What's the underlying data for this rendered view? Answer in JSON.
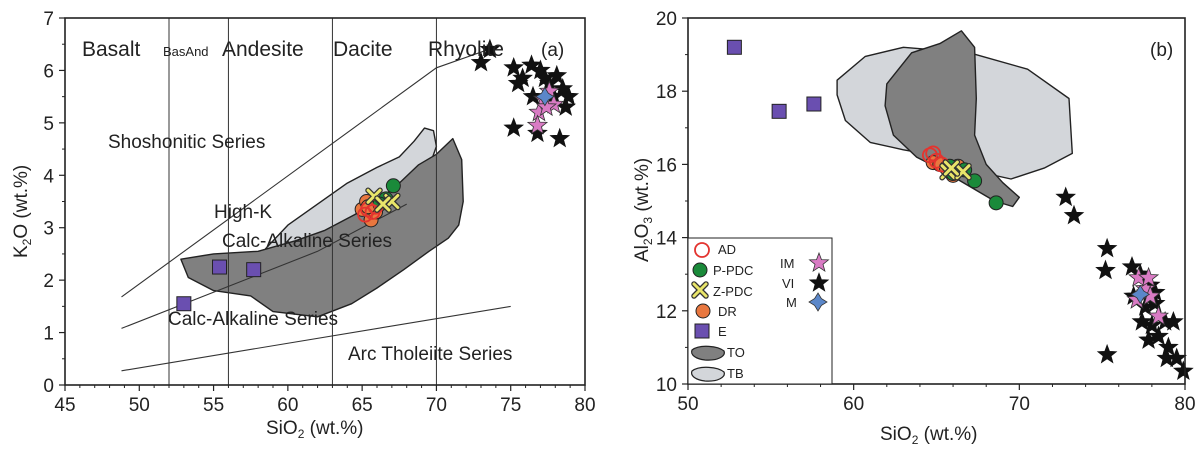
{
  "chart_data": [
    {
      "type": "scatter",
      "panel_label": "(a)",
      "xlabel": "SiO",
      "xlabel_sub": "2",
      "xlabel_unit": " (wt.%)",
      "ylabel": "K",
      "ylabel_sub": "2",
      "ylabel_unit": "O (wt.%)",
      "xlim": [
        45,
        80
      ],
      "ylim": [
        0,
        7
      ],
      "xticks": [
        "45",
        "50",
        "55",
        "60",
        "65",
        "70",
        "75",
        "80"
      ],
      "yticks": [
        "0",
        "1",
        "2",
        "3",
        "4",
        "5",
        "6",
        "7"
      ],
      "fields": [
        "Basalt",
        "BasAnd",
        "Andesite",
        "Dacite",
        "Rhyolite"
      ],
      "series_labels": [
        "Shoshonitic Series",
        "High-K",
        "Calc-Alkaline Series",
        "Calc-Alkaline Series",
        "Arc Tholeiite Series"
      ],
      "series_labels_note": "",
      "field_boundaries_x": [
        52,
        56,
        63,
        70
      ],
      "series": [
        {
          "name": "AD",
          "points": [
            [
              65.4,
              3.35
            ],
            [
              65.7,
              3.3
            ],
            [
              65.2,
              3.25
            ],
            [
              65.9,
              3.4
            ]
          ]
        },
        {
          "name": "P-PDC",
          "points": [
            [
              66.6,
              3.55
            ],
            [
              67.1,
              3.8
            ],
            [
              66.2,
              3.45
            ]
          ]
        },
        {
          "name": "Z-PDC",
          "points": [
            [
              65.8,
              3.6
            ],
            [
              67.0,
              3.5
            ],
            [
              66.4,
              3.45
            ]
          ]
        },
        {
          "name": "DR",
          "points": [
            [
              65.0,
              3.35
            ],
            [
              65.3,
              3.5
            ],
            [
              65.6,
              3.15
            ],
            [
              65.9,
              3.3
            ],
            [
              65.4,
              3.4
            ]
          ]
        },
        {
          "name": "E",
          "points": [
            [
              53.0,
              1.55
            ],
            [
              55.4,
              2.25
            ],
            [
              57.7,
              2.2
            ]
          ]
        },
        {
          "name": "IM",
          "points": [
            [
              77.2,
              5.45
            ],
            [
              77.6,
              5.6
            ],
            [
              76.9,
              5.2
            ],
            [
              77.9,
              5.35
            ],
            [
              76.8,
              4.95
            ],
            [
              77.4,
              5.3
            ]
          ]
        },
        {
          "name": "VI",
          "points": [
            [
              73.0,
              6.15
            ],
            [
              73.6,
              6.4
            ],
            [
              75.2,
              6.05
            ],
            [
              75.8,
              5.85
            ],
            [
              76.4,
              6.1
            ],
            [
              77.0,
              6.0
            ],
            [
              77.6,
              5.75
            ],
            [
              78.1,
              5.9
            ],
            [
              78.5,
              5.65
            ],
            [
              78.9,
              5.5
            ],
            [
              77.9,
              5.5
            ],
            [
              76.5,
              5.5
            ],
            [
              75.2,
              4.9
            ],
            [
              76.8,
              4.8
            ],
            [
              75.5,
              5.75
            ],
            [
              78.3,
              4.7
            ],
            [
              77.3,
              5.85
            ],
            [
              78.7,
              5.3
            ]
          ]
        },
        {
          "name": "M",
          "points": [
            [
              77.3,
              5.5
            ]
          ]
        }
      ]
    },
    {
      "type": "scatter",
      "panel_label": "(b)",
      "xlabel": "SiO",
      "xlabel_sub": "2",
      "xlabel_unit": " (wt.%)",
      "ylabel": "Al",
      "ylabel_sub1": "2",
      "ylabel_mid": "O",
      "ylabel_sub2": "3",
      "ylabel_unit": " (wt.%)",
      "xlim": [
        50,
        80
      ],
      "ylim": [
        10,
        20
      ],
      "xticks": [
        "50",
        "60",
        "70",
        "80"
      ],
      "yticks": [
        "10",
        "12",
        "14",
        "16",
        "18",
        "20"
      ],
      "series": [
        {
          "name": "AD",
          "points": [
            [
              64.6,
              16.25
            ],
            [
              65.0,
              16.1
            ],
            [
              64.8,
              16.3
            ],
            [
              65.3,
              16.0
            ]
          ]
        },
        {
          "name": "P-PDC",
          "points": [
            [
              65.8,
              15.95
            ],
            [
              66.7,
              15.85
            ],
            [
              67.3,
              15.55
            ],
            [
              68.6,
              14.95
            ],
            [
              66.0,
              15.75
            ]
          ]
        },
        {
          "name": "Z-PDC",
          "points": [
            [
              65.7,
              15.8
            ],
            [
              66.6,
              15.8
            ],
            [
              65.9,
              15.9
            ]
          ]
        },
        {
          "name": "DR",
          "points": [
            [
              64.8,
              16.05
            ],
            [
              65.2,
              16.0
            ],
            [
              65.6,
              15.9
            ],
            [
              66.0,
              15.7
            ],
            [
              66.3,
              15.95
            ]
          ]
        },
        {
          "name": "E",
          "points": [
            [
              52.8,
              19.2
            ],
            [
              55.5,
              17.45
            ],
            [
              57.6,
              17.65
            ]
          ]
        },
        {
          "name": "IM",
          "points": [
            [
              77.2,
              12.9
            ],
            [
              77.6,
              12.6
            ],
            [
              77.9,
              12.4
            ],
            [
              78.4,
              11.85
            ],
            [
              77.1,
              12.3
            ],
            [
              77.8,
              12.9
            ]
          ]
        },
        {
          "name": "VI",
          "points": [
            [
              72.8,
              15.1
            ],
            [
              73.3,
              14.6
            ],
            [
              75.3,
              13.7
            ],
            [
              75.2,
              13.1
            ],
            [
              75.3,
              10.8
            ],
            [
              76.8,
              13.2
            ],
            [
              77.3,
              13.0
            ],
            [
              77.9,
              12.7
            ],
            [
              76.9,
              12.4
            ],
            [
              77.6,
              12.1
            ],
            [
              78.2,
              12.2
            ],
            [
              78.8,
              11.7
            ],
            [
              79.3,
              11.7
            ],
            [
              78.0,
              11.6
            ],
            [
              77.8,
              11.2
            ],
            [
              78.4,
              11.3
            ],
            [
              79.0,
              11.0
            ],
            [
              78.9,
              10.7
            ],
            [
              79.5,
              10.7
            ],
            [
              79.9,
              10.35
            ],
            [
              78.2,
              12.5
            ],
            [
              77.4,
              11.7
            ]
          ]
        },
        {
          "name": "M",
          "points": [
            [
              77.3,
              12.45
            ]
          ]
        }
      ],
      "legend": {
        "placement": "bottom-left",
        "items": [
          "AD",
          "P-PDC",
          "Z-PDC",
          "DR",
          "E",
          "TO",
          "TB",
          "IM",
          "VI",
          "M"
        ]
      }
    }
  ],
  "colors": {
    "AD": "#e3342f",
    "P-PDC": "#1a8a3a",
    "Z-PDC": "#e9e56a",
    "DR": "#e8773f",
    "E": "#6a4fb0",
    "IM": "#d97bc4",
    "VI": "#111111",
    "M": "#5b87c9",
    "TO": "#808080",
    "TB": "#d3d6da"
  }
}
